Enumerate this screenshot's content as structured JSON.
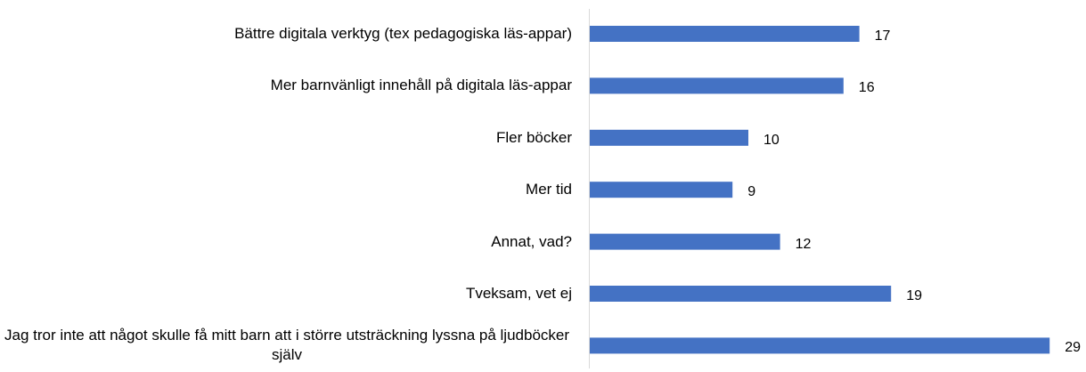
{
  "chart_data": {
    "type": "barh",
    "categories": [
      "Bättre digitala verktyg (tex pedagogiska läs-appar)",
      "Mer barnvänligt innehåll på digitala läs-appar",
      "Fler böcker",
      "Mer tid",
      "Annat, vad?",
      "Tveksam, vet ej",
      "Jag tror inte att något skulle få mitt barn att i större utsträckning lyssna på ljudböcker själv"
    ],
    "values": [
      17,
      16,
      10,
      9,
      12,
      19,
      29
    ],
    "color": "#4472c4"
  }
}
